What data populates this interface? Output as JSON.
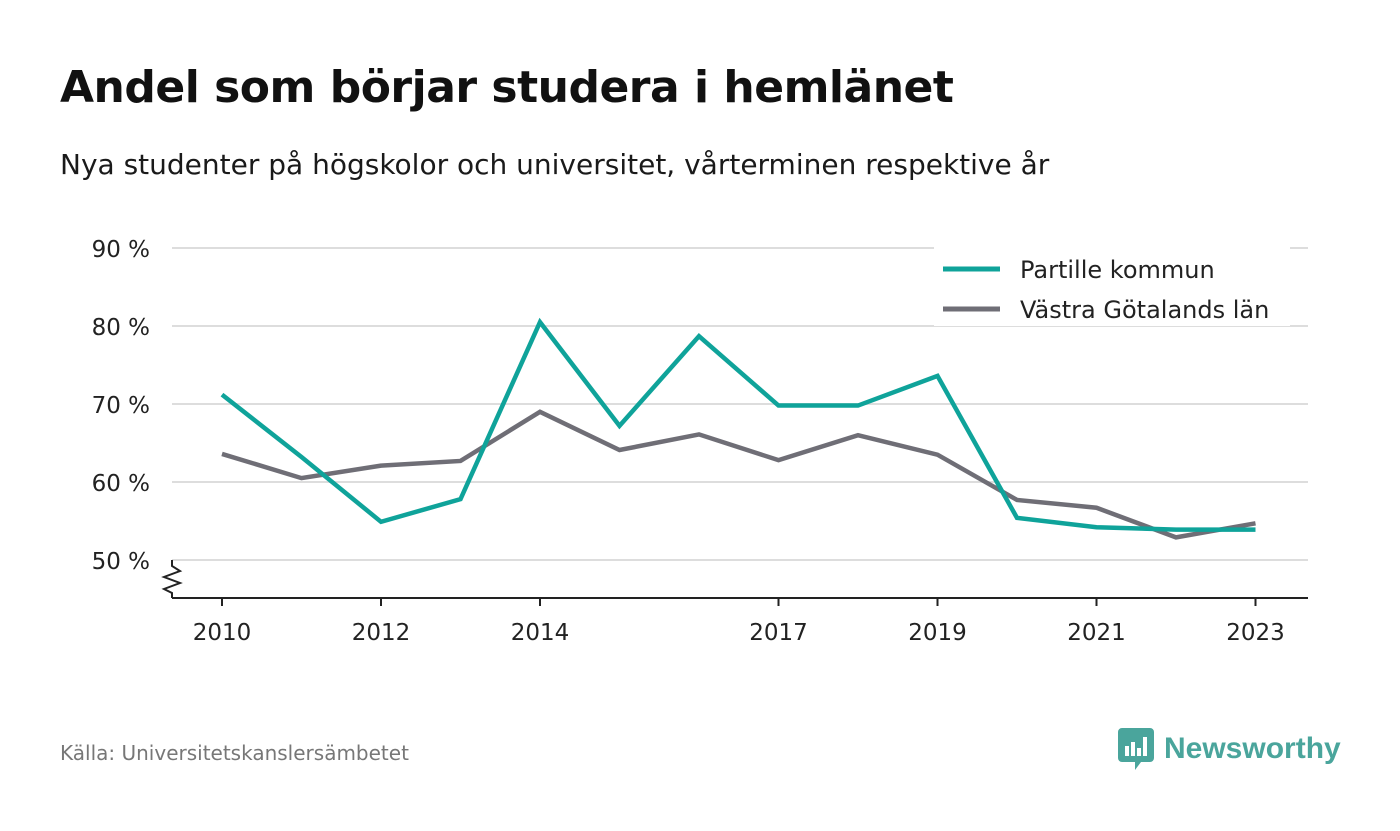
{
  "header": {
    "title": "Andel som börjar studera i hemlänet",
    "subtitle": "Nya studenter på högskolor och universitet, vårterminen respektive år"
  },
  "footer": {
    "source": "Källa: Universitetskanslersämbetet",
    "brand": "Newsworthy",
    "brand_icon": "newsworthy-logo-icon"
  },
  "colors": {
    "partille": "#0fa39a",
    "vastra_gotaland": "#6f6e76",
    "grid": "#dddddd",
    "axis": "#222222",
    "brand": "#4aa59c"
  },
  "chart_data": {
    "type": "line",
    "x": [
      2010,
      2011,
      2012,
      2013,
      2014,
      2015,
      2016,
      2017,
      2018,
      2019,
      2020,
      2021,
      2022,
      2023
    ],
    "x_tick_values": [
      2010,
      2012,
      2014,
      2017,
      2019,
      2021,
      2023
    ],
    "x_tick_labels": [
      "2010",
      "2012",
      "2014",
      "2017",
      "2019",
      "2021",
      "2023"
    ],
    "y_ticks": [
      50,
      60,
      70,
      80,
      90
    ],
    "y_tick_labels": [
      "50 %",
      "60 %",
      "70 %",
      "80 %",
      "90 %"
    ],
    "ylim": [
      45,
      90
    ],
    "y_axis_break": true,
    "grid": "horizontal",
    "legend_position": "top-right",
    "series": [
      {
        "name": "Partille kommun",
        "color": "#0fa39a",
        "values": [
          71.2,
          63.2,
          54.9,
          57.8,
          80.5,
          67.2,
          78.7,
          69.8,
          69.8,
          73.6,
          55.4,
          54.2,
          53.9,
          53.9
        ]
      },
      {
        "name": "Västra Götalands län",
        "color": "#6f6e76",
        "values": [
          63.6,
          60.5,
          62.1,
          62.7,
          69.0,
          64.1,
          66.1,
          62.8,
          66.0,
          63.5,
          57.7,
          56.7,
          52.9,
          54.7
        ]
      }
    ]
  }
}
